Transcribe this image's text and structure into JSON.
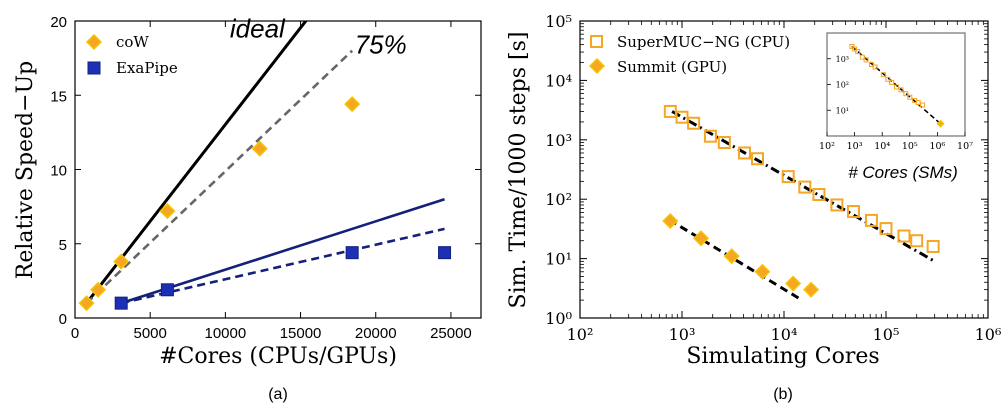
{
  "chart_data": [
    {
      "type": "scatter",
      "panel_label": "(a)",
      "xlabel": "#Cores (CPUs/GPUs)",
      "ylabel": "Relative Speed−Up",
      "xlim": [
        0,
        27000
      ],
      "ylim": [
        0,
        20
      ],
      "xticks": [
        0,
        5000,
        10000,
        15000,
        20000,
        25000
      ],
      "yticks": [
        0,
        5,
        10,
        15,
        20
      ],
      "legend": {
        "placement": "top-left"
      },
      "annotations": [
        {
          "text": "ideal",
          "x": 10300,
          "y": 18.9
        },
        {
          "text": "75%",
          "x": 18600,
          "y": 17.8
        }
      ],
      "series": [
        {
          "name": "coW",
          "marker": "diamond",
          "color": "#f5a623",
          "edge": "#f5c400",
          "x": [
            768,
            1536,
            3072,
            6144,
            12288,
            18432
          ],
          "y": [
            1.0,
            1.9,
            3.8,
            7.2,
            11.4,
            14.4
          ]
        },
        {
          "name": "ExaPipe",
          "marker": "square",
          "color": "#1c2fb5",
          "edge": "#12207d",
          "x": [
            3072,
            6144,
            18432,
            24576
          ],
          "y": [
            1.0,
            1.9,
            4.4,
            4.4
          ]
        }
      ],
      "lines": [
        {
          "style": "solid",
          "color": "#000000",
          "x": [
            768,
            16500
          ],
          "y": [
            1.0,
            21.5
          ]
        },
        {
          "style": "dashed",
          "color": "#666666",
          "x": [
            768,
            18432
          ],
          "y": [
            1.0,
            18.0
          ]
        },
        {
          "style": "solid",
          "color": "#14207a",
          "x": [
            3072,
            24576
          ],
          "y": [
            1.0,
            8.0
          ]
        },
        {
          "style": "dashed",
          "color": "#14207a",
          "x": [
            3072,
            24576
          ],
          "y": [
            1.0,
            6.0
          ]
        }
      ]
    },
    {
      "type": "scatter",
      "panel_label": "(b)",
      "xlabel": "Simulating Cores",
      "ylabel": "Sim. Time/1000 steps [s]",
      "xscale": "log",
      "yscale": "log",
      "xlim": [
        100,
        1000000
      ],
      "ylim": [
        1,
        100000
      ],
      "xtick_labels": [
        "10²",
        "10³",
        "10⁴",
        "10⁵",
        "10⁶"
      ],
      "ytick_labels": [
        "10⁰",
        "10¹",
        "10²",
        "10³",
        "10⁴",
        "10⁵"
      ],
      "legend": {
        "placement": "top-left"
      },
      "series": [
        {
          "name": "SuperMUC−NG (CPU)",
          "marker": "open-square",
          "color": "#f5a623",
          "x": [
            768,
            1000,
            1300,
            1900,
            2600,
            4100,
            5500,
            11000,
            16000,
            22000,
            33000,
            48000,
            72000,
            100000,
            150000,
            200000,
            290000
          ],
          "y": [
            3000,
            2400,
            1900,
            1150,
            900,
            600,
            480,
            240,
            160,
            120,
            80,
            62,
            44,
            32,
            24,
            20,
            16
          ]
        },
        {
          "name": "Summit (GPU)",
          "marker": "diamond",
          "color": "#f5a623",
          "x": [
            768,
            1536,
            3072,
            6144,
            12288,
            18432
          ],
          "y": [
            43,
            22,
            11,
            6.0,
            3.8,
            3.0
          ]
        }
      ],
      "lines": [
        {
          "style": "dashdot",
          "color": "#000000",
          "x": [
            800,
            300000
          ],
          "y": [
            3000,
            9
          ]
        },
        {
          "style": "dashed",
          "color": "#000000",
          "x": [
            750,
            15000
          ],
          "y": [
            45,
            2.0
          ]
        }
      ],
      "inset": {
        "xlabel": "# Cores (SMs)",
        "xscale": "log",
        "yscale": "log",
        "xlim": [
          100,
          10000000
        ],
        "ylim": [
          1,
          10000
        ],
        "xtick_labels": [
          "10²",
          "10³",
          "10⁴",
          "10⁵",
          "10⁶",
          "10⁷"
        ],
        "ytick_labels": [
          "10¹",
          "10²",
          "10³"
        ],
        "points": {
          "x": [
            800,
            1000,
            1300,
            1900,
            2600,
            4100,
            5500,
            11000,
            16000,
            22000,
            33000,
            48000,
            72000,
            100000,
            150000,
            200000,
            290000
          ],
          "y": [
            3000,
            2400,
            1900,
            1150,
            900,
            600,
            480,
            240,
            160,
            120,
            80,
            62,
            44,
            32,
            24,
            20,
            16
          ]
        },
        "gpu_points": {
          "x": [
            1300000
          ],
          "y": [
            3
          ]
        }
      }
    }
  ]
}
